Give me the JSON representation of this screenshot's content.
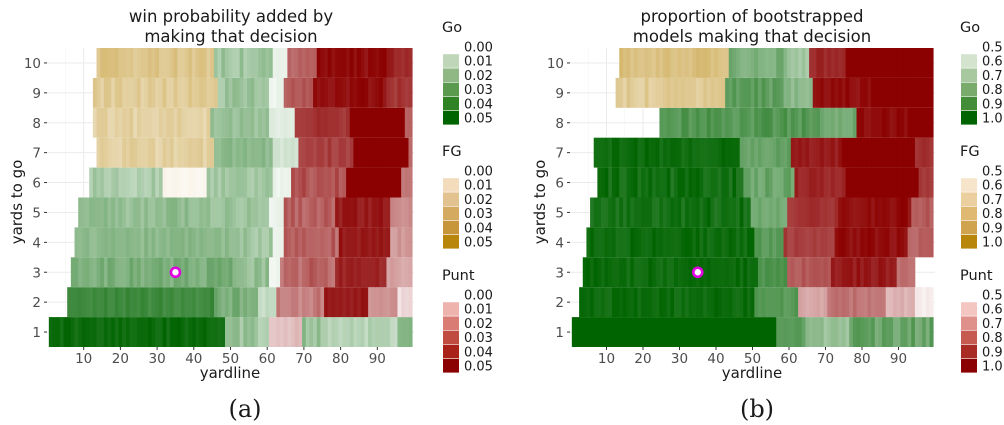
{
  "chart_data": [
    {
      "type": "heatmap",
      "title": "win probability added by making that decision",
      "title_lines": [
        "win probability added by",
        "making that decision"
      ],
      "xlabel": "yardline",
      "ylabel": "yards to go",
      "xlim": [
        0,
        100
      ],
      "ylim": [
        0.5,
        10.5
      ],
      "x_ticks": [
        10,
        20,
        30,
        40,
        50,
        60,
        70,
        80,
        90
      ],
      "y_ticks": [
        1,
        2,
        3,
        4,
        5,
        6,
        7,
        8,
        9,
        10
      ],
      "caption": "(a)",
      "marker": {
        "x": 35,
        "y": 3
      },
      "legends": [
        {
          "title": "Go",
          "labels": [
            "0.00",
            "0.01",
            "0.02",
            "0.03",
            "0.04",
            "0.05"
          ],
          "colors": [
            "#ffffff",
            "#bfd6b8",
            "#8fb885",
            "#5a9a4e",
            "#2f8324",
            "#006400"
          ]
        },
        {
          "title": "FG",
          "labels": [
            "0.00",
            "0.01",
            "0.02",
            "0.03",
            "0.04",
            "0.05"
          ],
          "colors": [
            "#ffffff",
            "#f2dcbc",
            "#e2c28e",
            "#d4aa61",
            "#c8963a",
            "#b8860b"
          ]
        },
        {
          "title": "Punt",
          "labels": [
            "0.00",
            "0.01",
            "0.02",
            "0.03",
            "0.04",
            "0.05"
          ],
          "colors": [
            "#ffffff",
            "#efb3ae",
            "#d97d74",
            "#c04c41",
            "#a8221a",
            "#8b0000"
          ]
        }
      ],
      "rows": [
        {
          "ytg": 1,
          "start": 1,
          "segments": [
            [
              "Go",
              0,
              1,
              0.9
            ],
            [
              "Go",
              48,
              0.3,
              0.5
            ],
            [
              "Go",
              56,
              0.2,
              0.4
            ],
            [
              "Punt",
              60,
              0.2,
              0.3
            ],
            [
              "Go",
              69,
              0.3,
              0.5
            ],
            [
              "Go",
              74,
              0.2,
              0.35
            ],
            [
              "Go",
              95,
              0.45,
              0.5
            ]
          ],
          "end": 99
        },
        {
          "ytg": 2,
          "start": 6,
          "segments": [
            [
              "Go",
              0,
              0.7,
              0.8
            ],
            [
              "Go",
              40,
              0.45,
              0.6
            ],
            [
              "Go",
              52,
              0.1,
              0.3
            ],
            [
              "Punt",
              57,
              0.4,
              0.6
            ],
            [
              "Punt",
              70,
              0.85,
              0.95
            ],
            [
              "Punt",
              82,
              0.35,
              0.5
            ],
            [
              "Punt",
              90,
              0.1,
              0.2
            ]
          ],
          "end": 99
        },
        {
          "ytg": 3,
          "start": 7,
          "segments": [
            [
              "Go",
              0,
              0.45,
              0.6
            ],
            [
              "Go",
              45,
              0.3,
              0.5
            ],
            [
              "Go",
              54,
              0.05,
              0.1
            ],
            [
              "Punt",
              57,
              0.5,
              0.7
            ],
            [
              "Punt",
              72,
              0.8,
              0.9
            ],
            [
              "Punt",
              86,
              0.3,
              0.4
            ],
            [
              "Go",
              97,
              0.3,
              0.4
            ]
          ],
          "end": 99
        },
        {
          "ytg": 4,
          "start": 8,
          "segments": [
            [
              "Go",
              0,
              0.4,
              0.5
            ],
            [
              "Go",
              45,
              0.3,
              0.45
            ],
            [
              "Go",
              54,
              0.05,
              0.1
            ],
            [
              "Punt",
              57,
              0.5,
              0.7
            ],
            [
              "Punt",
              72,
              0.85,
              0.95
            ],
            [
              "Punt",
              86,
              0.35,
              0.45
            ],
            [
              "Punt",
              96,
              0.15,
              0.25
            ]
          ],
          "end": 99
        },
        {
          "ytg": 5,
          "start": 9,
          "segments": [
            [
              "Go",
              0,
              0.35,
              0.5
            ],
            [
              "Go",
              40,
              0.3,
              0.45
            ],
            [
              "Go",
              52,
              0.05,
              0.1
            ],
            [
              "Punt",
              56,
              0.55,
              0.7
            ],
            [
              "Punt",
              70,
              0.85,
              0.95
            ],
            [
              "Punt",
              85,
              0.4,
              0.5
            ],
            [
              "Punt",
              96,
              0.2,
              0.3
            ]
          ],
          "end": 99
        },
        {
          "ytg": 6,
          "start": 12,
          "segments": [
            [
              "Go",
              0,
              0.25,
              0.4
            ],
            [
              "FG",
              20,
              0.05,
              0.1
            ],
            [
              "Go",
              32,
              0.3,
              0.45
            ],
            [
              "Go",
              50,
              0.05,
              0.1
            ],
            [
              "Punt",
              55,
              0.6,
              0.75
            ],
            [
              "Punt",
              70,
              1.0,
              1.0
            ],
            [
              "Punt",
              85,
              0.45,
              0.55
            ],
            [
              "Punt",
              95,
              0.2,
              0.3
            ]
          ],
          "end": 99
        },
        {
          "ytg": 7,
          "start": 14,
          "segments": [
            [
              "FG",
              0,
              0.3,
              0.45
            ],
            [
              "Go",
              32,
              0.4,
              0.5
            ],
            [
              "Go",
              48,
              0.1,
              0.2
            ],
            [
              "Punt",
              55,
              0.7,
              0.8
            ],
            [
              "Punt",
              70,
              1.0,
              1.0
            ],
            [
              "Punt",
              85,
              0.5,
              0.6
            ],
            [
              "Punt",
              95,
              0.3,
              0.4
            ]
          ],
          "end": 99
        },
        {
          "ytg": 8,
          "start": 13,
          "segments": [
            [
              "FG",
              0,
              0.3,
              0.45
            ],
            [
              "Go",
              32,
              0.35,
              0.45
            ],
            [
              "Go",
              48,
              0.1,
              0.15
            ],
            [
              "Punt",
              55,
              0.75,
              0.85
            ],
            [
              "Punt",
              70,
              1.0,
              1.0
            ],
            [
              "Punt",
              85,
              0.6,
              0.7
            ],
            [
              "Punt",
              95,
              0.35,
              0.45
            ]
          ],
          "end": 99
        },
        {
          "ytg": 9,
          "start": 13,
          "segments": [
            [
              "FG",
              0,
              0.35,
              0.5
            ],
            [
              "Go",
              34,
              0.3,
              0.45
            ],
            [
              "Go",
              48,
              0.05,
              0.1
            ],
            [
              "Punt",
              52,
              0.6,
              0.7
            ],
            [
              "Punt",
              60,
              0.9,
              1.0
            ],
            [
              "Punt",
              80,
              0.75,
              0.85
            ],
            [
              "Punt",
              95,
              0.45,
              0.55
            ]
          ],
          "end": 99
        },
        {
          "ytg": 10,
          "start": 14,
          "segments": [
            [
              "FG",
              0,
              0.4,
              0.55
            ],
            [
              "Go",
              32,
              0.3,
              0.45
            ],
            [
              "Go",
              48,
              0.05,
              0.1
            ],
            [
              "Punt",
              52,
              0.55,
              0.65
            ],
            [
              "Punt",
              60,
              0.9,
              1.0
            ],
            [
              "Punt",
              80,
              0.8,
              0.9
            ],
            [
              "Punt",
              95,
              0.5,
              0.6
            ]
          ],
          "end": 99
        }
      ]
    },
    {
      "type": "heatmap",
      "title": "proportion of bootstrapped models making that decision",
      "title_lines": [
        "proportion of bootstrapped",
        "models making that decision"
      ],
      "xlabel": "yardline",
      "ylabel": "yards to go",
      "xlim": [
        0,
        100
      ],
      "ylim": [
        0.5,
        10.5
      ],
      "x_ticks": [
        10,
        20,
        30,
        40,
        50,
        60,
        70,
        80,
        90
      ],
      "y_ticks": [
        1,
        2,
        3,
        4,
        5,
        6,
        7,
        8,
        9,
        10
      ],
      "caption": "(b)",
      "marker": {
        "x": 35,
        "y": 3
      },
      "legends": [
        {
          "title": "Go",
          "labels": [
            "0.5",
            "0.6",
            "0.7",
            "0.8",
            "0.9",
            "1.0"
          ],
          "colors": [
            "#ffffff",
            "#d3e3ce",
            "#a8c99f",
            "#79ab6d",
            "#438c38",
            "#006400"
          ]
        },
        {
          "title": "FG",
          "labels": [
            "0.5",
            "0.6",
            "0.7",
            "0.8",
            "0.9",
            "1.0"
          ],
          "colors": [
            "#ffffff",
            "#f6e5cb",
            "#ebcf9f",
            "#dfb872",
            "#d0a34e",
            "#b8860b"
          ]
        },
        {
          "title": "Punt",
          "labels": [
            "0.5",
            "0.6",
            "0.7",
            "0.8",
            "0.9",
            "1.0"
          ],
          "colors": [
            "#ffffff",
            "#f3c6c2",
            "#e0908a",
            "#c65a51",
            "#a82c23",
            "#8b0000"
          ]
        }
      ],
      "rows": [
        {
          "ytg": 1,
          "start": 1,
          "segments": [
            [
              "Go",
              0,
              1,
              1
            ],
            [
              "Go",
              56,
              0.6,
              0.7
            ],
            [
              "Go",
              64,
              0.35,
              0.5
            ],
            [
              "Go",
              76,
              0.5,
              0.7
            ]
          ],
          "end": 99
        },
        {
          "ytg": 2,
          "start": 3,
          "segments": [
            [
              "Go",
              0,
              0.9,
              1
            ],
            [
              "Go",
              48,
              0.6,
              0.7
            ],
            [
              "Punt",
              60,
              0.3,
              0.4
            ],
            [
              "Punt",
              68,
              0.5,
              0.6
            ],
            [
              "Punt",
              84,
              0.25,
              0.35
            ],
            [
              "Punt",
              92,
              0.05,
              0.1
            ]
          ],
          "end": 99
        },
        {
          "ytg": 3,
          "start": 4,
          "segments": [
            [
              "Go",
              0,
              0.9,
              1
            ],
            [
              "Go",
              48,
              0.65,
              0.75
            ],
            [
              "Punt",
              56,
              0.6,
              0.7
            ],
            [
              "Punt",
              68,
              0.85,
              0.95
            ],
            [
              "Punt",
              86,
              0.5,
              0.6
            ],
            [
              "Punt",
              94,
              0.2,
              0.3
            ]
          ],
          "end": 94
        },
        {
          "ytg": 4,
          "start": 5,
          "segments": [
            [
              "Go",
              0,
              0.9,
              1
            ],
            [
              "Go",
              46,
              0.6,
              0.7
            ],
            [
              "Punt",
              54,
              0.7,
              0.8
            ],
            [
              "Punt",
              68,
              0.9,
              1
            ],
            [
              "Punt",
              88,
              0.55,
              0.65
            ]
          ],
          "end": 99
        },
        {
          "ytg": 5,
          "start": 6,
          "segments": [
            [
              "Go",
              0,
              0.85,
              1
            ],
            [
              "Go",
              44,
              0.5,
              0.6
            ],
            [
              "Punt",
              54,
              0.75,
              0.85
            ],
            [
              "Punt",
              68,
              0.9,
              1
            ],
            [
              "Punt",
              88,
              0.6,
              0.7
            ]
          ],
          "end": 99
        },
        {
          "ytg": 6,
          "start": 8,
          "segments": [
            [
              "Go",
              0,
              0.85,
              1
            ],
            [
              "Go",
              40,
              0.5,
              0.65
            ],
            [
              "Punt",
              54,
              0.8,
              0.9
            ],
            [
              "Punt",
              68,
              1,
              1
            ],
            [
              "Punt",
              88,
              0.7,
              0.8
            ]
          ],
          "end": 99
        },
        {
          "ytg": 7,
          "start": 7,
          "segments": [
            [
              "Go",
              0,
              0.9,
              1
            ],
            [
              "Go",
              40,
              0.55,
              0.65
            ],
            [
              "Punt",
              54,
              0.85,
              0.95
            ],
            [
              "Punt",
              68,
              1,
              1
            ],
            [
              "Punt",
              88,
              0.75,
              0.85
            ]
          ],
          "end": 99
        },
        {
          "ytg": 8,
          "start": 25,
          "segments": [
            [
              "Go",
              0,
              0.6,
              0.75
            ],
            [
              "Go",
              44,
              0.5,
              0.6
            ],
            [
              "Punt",
              54,
              0.9,
              1
            ],
            [
              "Punt",
              68,
              1,
              1
            ],
            [
              "Punt",
              88,
              0.8,
              0.9
            ]
          ],
          "end": 99
        },
        {
          "ytg": 9,
          "start": 13,
          "segments": [
            [
              "FG",
              0,
              0.35,
              0.5
            ],
            [
              "Go",
              30,
              0.55,
              0.7
            ],
            [
              "Go",
              46,
              0.4,
              0.5
            ],
            [
              "Punt",
              54,
              0.9,
              1
            ],
            [
              "Punt",
              70,
              1,
              1
            ],
            [
              "Punt",
              90,
              0.85,
              0.95
            ]
          ],
          "end": 99
        },
        {
          "ytg": 10,
          "start": 14,
          "segments": [
            [
              "FG",
              0,
              0.45,
              0.6
            ],
            [
              "Go",
              30,
              0.45,
              0.6
            ],
            [
              "Go",
              46,
              0.3,
              0.4
            ],
            [
              "Punt",
              52,
              0.8,
              0.9
            ],
            [
              "Punt",
              62,
              1,
              1
            ],
            [
              "Punt",
              90,
              0.9,
              1
            ]
          ],
          "end": 99
        }
      ]
    }
  ]
}
